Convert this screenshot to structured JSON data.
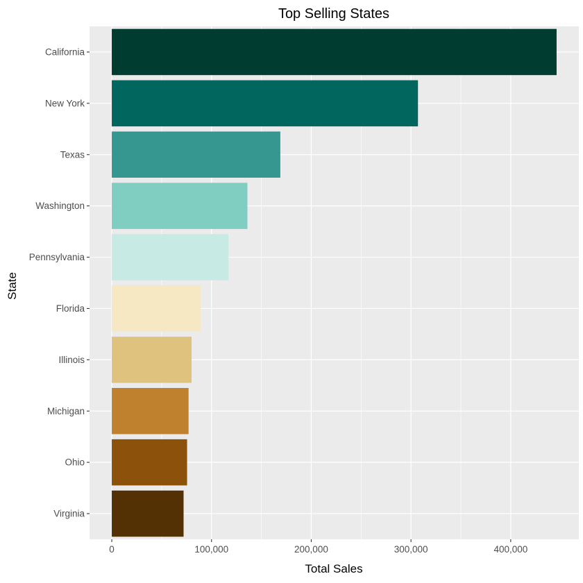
{
  "chart_data": {
    "type": "bar",
    "orientation": "horizontal",
    "title": "Top Selling States",
    "xlabel": "Total Sales",
    "ylabel": "State",
    "categories": [
      "California",
      "New York",
      "Texas",
      "Washington",
      "Pennsylvania",
      "Florida",
      "Illinois",
      "Michigan",
      "Ohio",
      "Virginia"
    ],
    "values": [
      446000,
      307000,
      169000,
      136000,
      117000,
      89000,
      80000,
      77000,
      75500,
      72000
    ],
    "colors": [
      "#003c30",
      "#01665e",
      "#35978f",
      "#80cdc1",
      "#c7eae5",
      "#f6e8c3",
      "#dfc27d",
      "#bf812d",
      "#8c510a",
      "#543005"
    ],
    "xlim": [
      -22300,
      468300
    ],
    "xticks": [
      0,
      100000,
      200000,
      300000,
      400000
    ],
    "xtick_labels": [
      "0",
      "100,000",
      "200,000",
      "300,000",
      "400,000"
    ],
    "grid": true,
    "legend": "none"
  }
}
